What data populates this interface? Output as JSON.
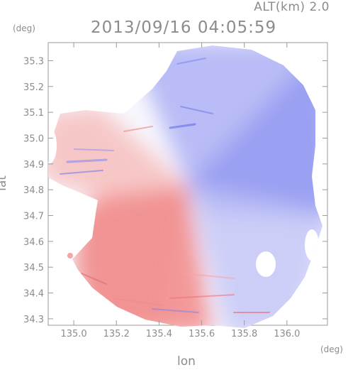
{
  "header": {
    "altitude": "ALT(km) 2.0",
    "datetime": "2013/09/16 04:05:59",
    "y_unit": "(deg)",
    "x_unit": "(deg)"
  },
  "chart_data": {
    "type": "heatmap",
    "title": "2013/09/16 04:05:59",
    "xlabel": "lon",
    "ylabel": "lat",
    "x_ticks": [
      "135.0",
      "135.2",
      "135.4",
      "135.6",
      "135.8",
      "136.0"
    ],
    "y_ticks": [
      "35.3",
      "35.2",
      "35.1",
      "35.0",
      "34.9",
      "34.8",
      "34.7",
      "34.6",
      "34.5",
      "34.4",
      "34.3"
    ],
    "xlim": [
      134.88,
      136.19
    ],
    "ylim": [
      34.275,
      35.37
    ],
    "radar_center": {
      "lon": 135.52,
      "lat": 34.82
    },
    "colors": {
      "positive": "#f05a5a",
      "negative": "#6b73f0",
      "neutral": "#ffffff"
    },
    "grid": false
  }
}
